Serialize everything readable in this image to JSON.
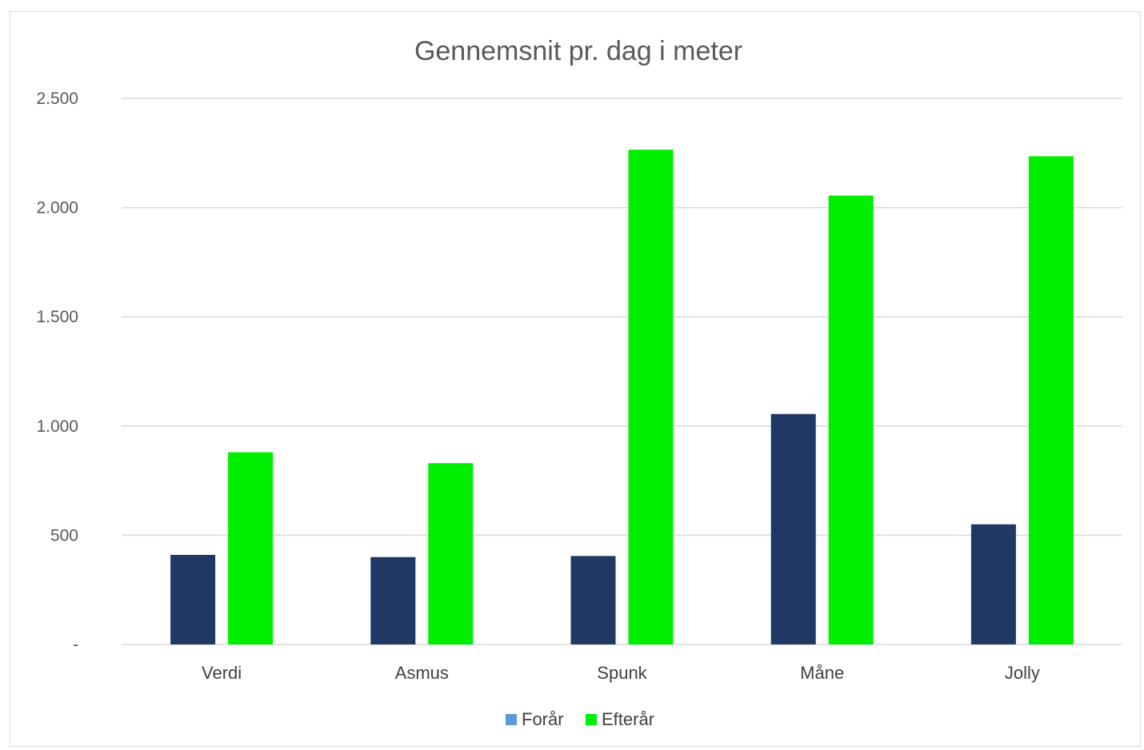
{
  "chart_data": {
    "type": "bar",
    "title": "Gennemsnit pr. dag i meter",
    "xlabel": "",
    "ylabel": "",
    "categories": [
      "Verdi",
      "Asmus",
      "Spunk",
      "Måne",
      "Jolly"
    ],
    "series": [
      {
        "name": "Forår",
        "values": [
          410,
          400,
          405,
          1055,
          550
        ]
      },
      {
        "name": "Efterår",
        "values": [
          880,
          830,
          2265,
          2055,
          2235
        ]
      }
    ],
    "ylim": [
      0,
      2500
    ],
    "yticks": [
      0,
      500,
      1000,
      1500,
      2000,
      2500
    ],
    "ytick_labels": [
      "-",
      "500",
      "1.000",
      "1.500",
      "2.000",
      "2.500"
    ],
    "grid": true,
    "legend": "bottom",
    "colors": {
      "Forår_bar": "#1f3864",
      "Forår_legend": "#5b9bd5",
      "Efterår": "#00ee00",
      "grid": "#d9d9d9",
      "text": "#595959"
    }
  }
}
